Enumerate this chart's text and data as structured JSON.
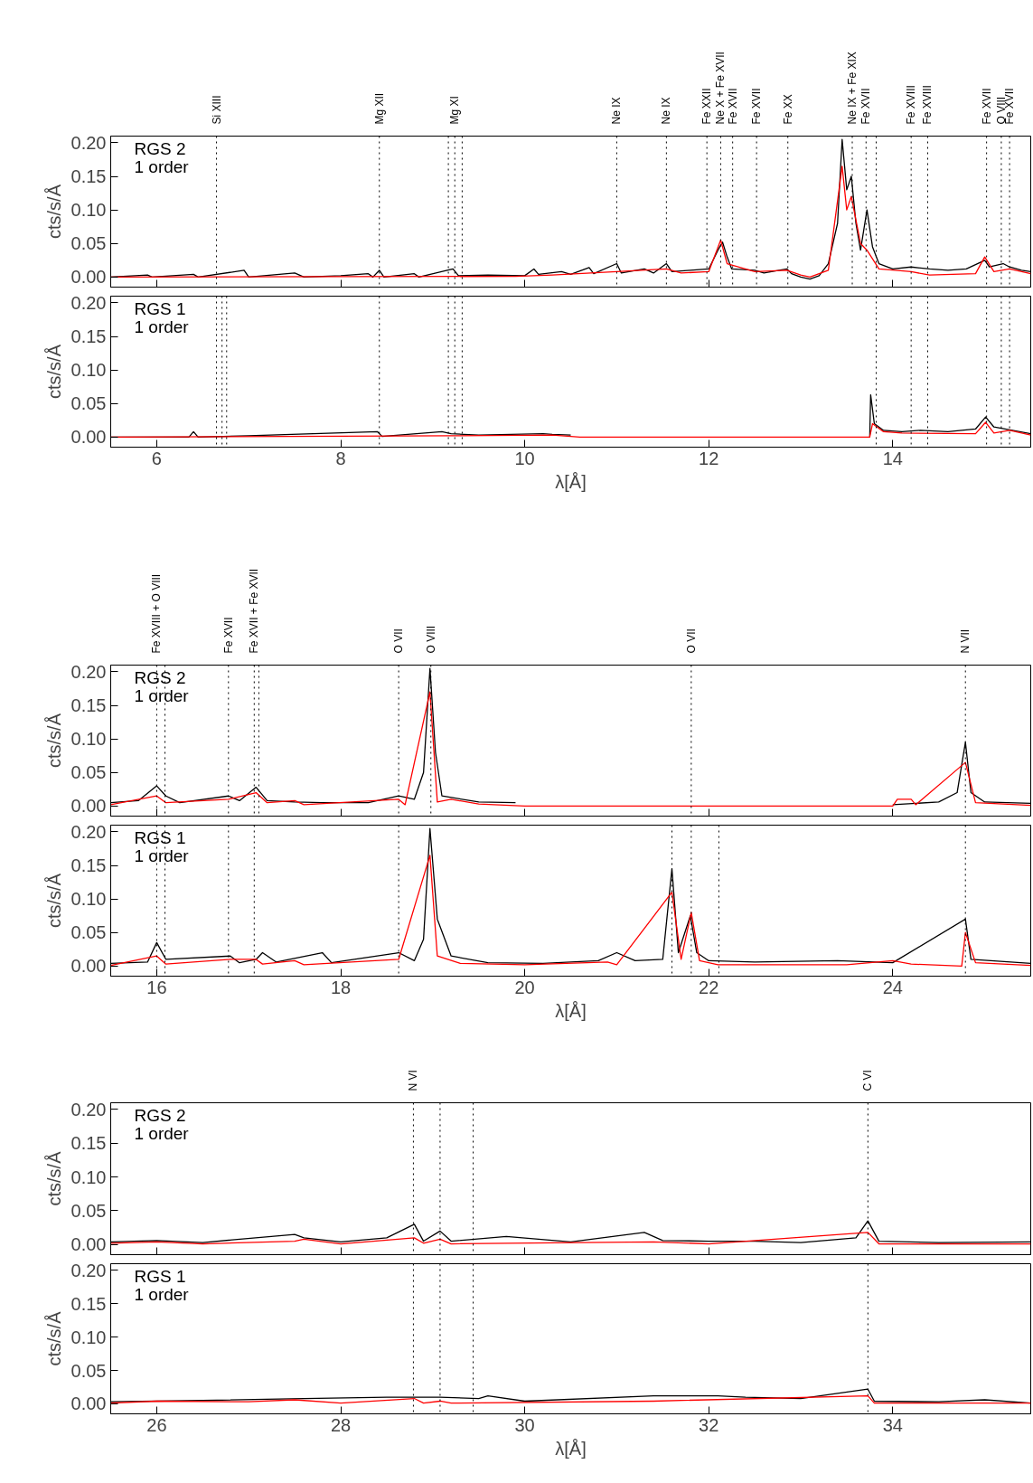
{
  "chart_data": [
    {
      "type": "line",
      "ylabel": "cts/s/Å",
      "xlim": [
        5.5,
        15.5
      ],
      "xticks": [
        6,
        8,
        10,
        12,
        14
      ],
      "ylim": [
        -0.015,
        0.21
      ],
      "yticks": [
        {
          "value": 0,
          "label": "0.00"
        },
        {
          "value": 0.05,
          "label": "0.05"
        },
        {
          "value": 0.1,
          "label": "0.10"
        },
        {
          "value": 0.15,
          "label": "0.15"
        },
        {
          "value": 0.2,
          "label": "0.20"
        }
      ],
      "tick_labels": "y",
      "grid": false,
      "annotations": [
        "RGS 2",
        "1 order"
      ],
      "series": [
        {
          "color": "#000000",
          "x": [
            5.5,
            5.9,
            5.95,
            6.4,
            6.45,
            6.95,
            7.0,
            7.5,
            7.6,
            8.0,
            8.3,
            8.35,
            8.42,
            8.47,
            8.8,
            8.85,
            9.22,
            9.28,
            9.6,
            10.0,
            10.1,
            10.15,
            10.4,
            10.5,
            10.7,
            10.75,
            11.0,
            11.05,
            11.3,
            11.4,
            11.54,
            11.6,
            11.8,
            12.0,
            12.1,
            12.15,
            12.2,
            12.25,
            12.5,
            12.6,
            12.85,
            12.9,
            13.0,
            13.1,
            13.2,
            13.3,
            13.4,
            13.45,
            13.5,
            13.55,
            13.6,
            13.65,
            13.72,
            13.78,
            13.85,
            14.0,
            14.2,
            14.4,
            14.6,
            14.8,
            15.0,
            15.05,
            15.2,
            15.27,
            15.4,
            15.5
          ],
          "values": [
            0,
            0.003,
            0,
            0.004,
            0,
            0.01,
            0,
            0.006,
            0,
            0.002,
            0.005,
            0,
            0.01,
            0,
            0.005,
            0,
            0.012,
            0.002,
            0.003,
            0.002,
            0.012,
            0.004,
            0.008,
            0.004,
            0.014,
            0.005,
            0.02,
            0.006,
            0.012,
            0.006,
            0.02,
            0.008,
            0.01,
            0.012,
            0.04,
            0.052,
            0.03,
            0.012,
            0.01,
            0.006,
            0.012,
            0.005,
            0,
            -0.003,
            0.002,
            0.02,
            0.08,
            0.205,
            0.13,
            0.15,
            0.08,
            0.04,
            0.1,
            0.045,
            0.02,
            0.012,
            0.015,
            0.012,
            0.01,
            0.012,
            0.025,
            0.015,
            0.02,
            0.015,
            0.01,
            0.008
          ]
        },
        {
          "color": "#ff0000",
          "x": [
            5.5,
            9.9,
            10.3,
            11.0,
            11.54,
            11.7,
            12.0,
            12.13,
            12.2,
            12.5,
            12.85,
            13.0,
            13.1,
            13.3,
            13.45,
            13.5,
            13.55,
            13.65,
            13.72,
            13.85,
            14.2,
            14.4,
            14.9,
            15.0,
            15.1,
            15.27,
            15.5
          ],
          "values": [
            0,
            0.001,
            0.003,
            0.008,
            0.012,
            0.006,
            0.008,
            0.055,
            0.02,
            0.008,
            0.01,
            0.003,
            0,
            0.01,
            0.165,
            0.1,
            0.12,
            0.05,
            0.04,
            0.012,
            0.008,
            0.003,
            0.005,
            0.03,
            0.008,
            0.012,
            0.005
          ]
        }
      ],
      "ref_lines": [
        {
          "axis": "x",
          "value": 6.65,
          "label": "Si XIII",
          "line_style": "dotted"
        },
        {
          "axis": "x",
          "value": 8.42,
          "label": "Mg XII",
          "line_style": "dotted"
        },
        {
          "axis": "x",
          "value": 9.17,
          "label": null,
          "line_style": "dotted"
        },
        {
          "axis": "x",
          "value": 9.24,
          "label": "Mg XI",
          "line_style": "dotted"
        },
        {
          "axis": "x",
          "value": 9.32,
          "label": null,
          "line_style": "dotted"
        },
        {
          "axis": "x",
          "value": 11.0,
          "label": "Ne IX",
          "line_style": "dotted"
        },
        {
          "axis": "x",
          "value": 11.54,
          "label": "Ne IX",
          "line_style": "dotted"
        },
        {
          "axis": "x",
          "value": 11.98,
          "label": "Fe XXII",
          "line_style": "dotted"
        },
        {
          "axis": "x",
          "value": 12.13,
          "label": "Ne X + Fe XVII",
          "line_style": "dotted"
        },
        {
          "axis": "x",
          "value": 12.26,
          "label": "Fe XVII",
          "line_style": "dotted"
        },
        {
          "axis": "x",
          "value": 12.52,
          "label": "Fe XVII",
          "line_style": "dotted"
        },
        {
          "axis": "x",
          "value": 12.86,
          "label": "Fe XX",
          "line_style": "dotted"
        },
        {
          "axis": "x",
          "value": 13.56,
          "label": "Ne IX + Fe XIX",
          "line_style": "dotted"
        },
        {
          "axis": "x",
          "value": 13.71,
          "label": "Fe XVII",
          "line_style": "dotted"
        },
        {
          "axis": "x",
          "value": 13.82,
          "label": null,
          "line_style": "dotted"
        },
        {
          "axis": "x",
          "value": 14.2,
          "label": "Fe XVIII",
          "line_style": "dotted"
        },
        {
          "axis": "x",
          "value": 14.38,
          "label": "Fe XVIII",
          "line_style": "dotted"
        },
        {
          "axis": "x",
          "value": 15.02,
          "label": "Fe XVII",
          "line_style": "dotted"
        },
        {
          "axis": "x",
          "value": 15.18,
          "label": "O VIII",
          "line_style": "dotted"
        },
        {
          "axis": "x",
          "value": 15.27,
          "label": "Fe XVII",
          "line_style": "dotted"
        }
      ]
    },
    {
      "type": "line",
      "ylabel": "cts/s/Å",
      "xlabel": "λ[Å]",
      "xlim": [
        5.5,
        15.5
      ],
      "xticks": [
        6,
        8,
        10,
        12,
        14
      ],
      "ylim": [
        -0.015,
        0.21
      ],
      "yticks": [
        {
          "value": 0,
          "label": "0.00"
        },
        {
          "value": 0.05,
          "label": "0.05"
        },
        {
          "value": 0.1,
          "label": "0.10"
        },
        {
          "value": 0.15,
          "label": "0.15"
        },
        {
          "value": 0.2,
          "label": "0.20"
        }
      ],
      "grid": false,
      "annotations": [
        "RGS 1",
        "1 order"
      ],
      "series": [
        {
          "color": "#000000",
          "x": [
            5.5,
            6.35,
            6.4,
            6.45,
            7.0,
            8.4,
            8.45,
            9.1,
            9.2,
            9.5,
            10.2,
            10.3,
            10.5,
            10.55,
            13.75,
            13.76,
            13.8,
            13.9,
            14.1,
            14.3,
            14.6,
            14.9,
            15.01,
            15.1,
            15.3,
            15.5
          ],
          "values": [
            0,
            0,
            0.008,
            0,
            0.002,
            0.008,
            0.001,
            0.008,
            0.005,
            0.003,
            0.005,
            0.004,
            0.003,
            null,
            0,
            0.063,
            0.02,
            0.01,
            0.008,
            0.01,
            0.008,
            0.012,
            0.03,
            0.015,
            0.01,
            0.005
          ]
        },
        {
          "color": "#ff0000",
          "x": [
            5.5,
            9.2,
            10.3,
            10.6,
            13.75,
            13.78,
            13.9,
            14.1,
            14.9,
            15.01,
            15.1,
            15.27,
            15.5
          ],
          "values": [
            0,
            0.002,
            0.003,
            0,
            0,
            0.02,
            0.008,
            0.006,
            0.005,
            0.022,
            0.006,
            0.01,
            0.003
          ]
        }
      ],
      "ref_lines": [
        {
          "axis": "x",
          "value": 6.65,
          "line_style": "dotted"
        },
        {
          "axis": "x",
          "value": 6.71,
          "line_style": "dotted"
        },
        {
          "axis": "x",
          "value": 6.76,
          "line_style": "dotted"
        },
        {
          "axis": "x",
          "value": 8.42,
          "line_style": "dotted"
        },
        {
          "axis": "x",
          "value": 9.17,
          "line_style": "dotted"
        },
        {
          "axis": "x",
          "value": 9.24,
          "line_style": "dotted"
        },
        {
          "axis": "x",
          "value": 9.32,
          "line_style": "dotted"
        },
        {
          "axis": "x",
          "value": 13.82,
          "line_style": "dotted"
        },
        {
          "axis": "x",
          "value": 14.2,
          "line_style": "dotted"
        },
        {
          "axis": "x",
          "value": 14.38,
          "line_style": "dotted"
        },
        {
          "axis": "x",
          "value": 15.02,
          "line_style": "dotted"
        },
        {
          "axis": "x",
          "value": 15.18,
          "line_style": "dotted"
        },
        {
          "axis": "x",
          "value": 15.27,
          "line_style": "dotted"
        }
      ]
    },
    {
      "type": "line",
      "ylabel": "cts/s/Å",
      "xlim": [
        15.5,
        25.5
      ],
      "xticks": [
        16,
        18,
        20,
        22,
        24
      ],
      "ylim": [
        -0.015,
        0.21
      ],
      "yticks": [
        {
          "value": 0,
          "label": "0.00"
        },
        {
          "value": 0.05,
          "label": "0.05"
        },
        {
          "value": 0.1,
          "label": "0.10"
        },
        {
          "value": 0.15,
          "label": "0.15"
        },
        {
          "value": 0.2,
          "label": "0.20"
        }
      ],
      "tick_labels": "y",
      "grid": false,
      "annotations": [
        "RGS 2",
        "1 order"
      ],
      "series": [
        {
          "color": "#000000",
          "x": [
            15.5,
            15.8,
            16.0,
            16.1,
            16.25,
            16.78,
            16.9,
            17.08,
            17.2,
            17.5,
            17.8,
            18.3,
            18.63,
            18.8,
            18.9,
            18.97,
            19.03,
            19.1,
            19.5,
            19.9,
            20.0,
            24.0,
            24.5,
            24.7,
            24.79,
            24.85,
            25.0,
            25.5
          ],
          "values": [
            0.005,
            0.008,
            0.03,
            0.015,
            0.005,
            0.015,
            0.008,
            0.028,
            0.008,
            0.006,
            0.005,
            0.005,
            0.015,
            0.01,
            0.05,
            0.205,
            0.08,
            0.015,
            0.006,
            0.005,
            null,
            0.002,
            0.006,
            0.02,
            0.095,
            0.02,
            0.006,
            0.004
          ]
        },
        {
          "color": "#ff0000",
          "x": [
            15.5,
            16.0,
            16.1,
            16.78,
            17.08,
            17.2,
            17.5,
            17.6,
            18.63,
            18.7,
            18.97,
            19.05,
            19.2,
            19.5,
            20.0,
            24.0,
            24.05,
            24.2,
            24.25,
            24.79,
            24.9,
            25.5
          ],
          "values": [
            0.002,
            0.015,
            0.005,
            0.01,
            0.02,
            0.005,
            0.008,
            0.002,
            0.01,
            0.002,
            0.17,
            0.006,
            0.01,
            0.003,
            0,
            0,
            0.01,
            0.01,
            0.002,
            0.065,
            0.005,
            0.001
          ]
        }
      ],
      "ref_lines": [
        {
          "axis": "x",
          "value": 16.0,
          "label": "Fe XVIII + O VIII",
          "line_style": "dotted"
        },
        {
          "axis": "x",
          "value": 16.09,
          "label": null,
          "line_style": "dotted"
        },
        {
          "axis": "x",
          "value": 16.78,
          "label": "Fe XVII",
          "line_style": "dotted"
        },
        {
          "axis": "x",
          "value": 17.06,
          "label": "Fe XVII + Fe XVII",
          "line_style": "dotted"
        },
        {
          "axis": "x",
          "value": 17.11,
          "label": null,
          "line_style": "dotted"
        },
        {
          "axis": "x",
          "value": 18.63,
          "label": "O VII",
          "line_style": "dotted"
        },
        {
          "axis": "x",
          "value": 18.98,
          "label": "O VIII",
          "line_style": "dotted"
        },
        {
          "axis": "x",
          "value": 21.81,
          "label": "O VII",
          "line_style": "dotted"
        },
        {
          "axis": "x",
          "value": 24.79,
          "label": "N VII",
          "line_style": "dotted"
        }
      ]
    },
    {
      "type": "line",
      "ylabel": "cts/s/Å",
      "xlabel": "λ[Å]",
      "xlim": [
        15.5,
        25.5
      ],
      "xticks": [
        16,
        18,
        20,
        22,
        24
      ],
      "ylim": [
        -0.015,
        0.21
      ],
      "yticks": [
        {
          "value": 0,
          "label": "0.00"
        },
        {
          "value": 0.05,
          "label": "0.05"
        },
        {
          "value": 0.1,
          "label": "0.10"
        },
        {
          "value": 0.15,
          "label": "0.15"
        },
        {
          "value": 0.2,
          "label": "0.20"
        }
      ],
      "grid": false,
      "annotations": [
        "RGS 1",
        "1 order"
      ],
      "series": [
        {
          "color": "#000000",
          "x": [
            15.5,
            15.9,
            16.0,
            16.1,
            16.8,
            16.9,
            17.08,
            17.15,
            17.3,
            17.8,
            17.9,
            18.63,
            18.8,
            18.9,
            18.97,
            19.05,
            19.2,
            19.6,
            20.2,
            20.8,
            21.0,
            21.2,
            21.5,
            21.6,
            21.67,
            21.8,
            21.87,
            22.0,
            22.5,
            23.4,
            24.0,
            24.79,
            24.85,
            25.5
          ],
          "values": [
            0.004,
            0.006,
            0.035,
            0.01,
            0.015,
            0.005,
            0.01,
            0.02,
            0.006,
            0.02,
            0.005,
            0.02,
            0.008,
            0.04,
            0.205,
            0.07,
            0.015,
            0.005,
            0.004,
            0.008,
            0.02,
            0.008,
            0.01,
            0.145,
            0.02,
            0.075,
            0.02,
            0.008,
            0.006,
            0.008,
            0.005,
            0.07,
            0.01,
            0.004
          ]
        },
        {
          "color": "#ff0000",
          "x": [
            15.5,
            16.0,
            16.1,
            16.8,
            17.08,
            17.15,
            17.5,
            17.6,
            18.63,
            18.97,
            19.05,
            19.3,
            20.0,
            20.9,
            21.0,
            21.6,
            21.7,
            21.81,
            21.9,
            22.1,
            23.5,
            24.0,
            24.2,
            24.75,
            24.79,
            24.9,
            25.5
          ],
          "values": [
            0.001,
            0.015,
            0.003,
            0.01,
            0.01,
            0.003,
            0.008,
            0.002,
            0.01,
            0.165,
            0.015,
            0.004,
            0.002,
            0.006,
            0.002,
            0.11,
            0.01,
            0.08,
            0.008,
            0.002,
            0.002,
            0.008,
            0.003,
            0,
            0.05,
            0.005,
            0.001
          ]
        }
      ],
      "ref_lines": [
        {
          "axis": "x",
          "value": 16.0,
          "line_style": "dotted"
        },
        {
          "axis": "x",
          "value": 16.09,
          "line_style": "dotted"
        },
        {
          "axis": "x",
          "value": 16.78,
          "line_style": "dotted"
        },
        {
          "axis": "x",
          "value": 17.06,
          "line_style": "dotted"
        },
        {
          "axis": "x",
          "value": 18.63,
          "line_style": "dotted"
        },
        {
          "axis": "x",
          "value": 21.6,
          "line_style": "dotted"
        },
        {
          "axis": "x",
          "value": 21.81,
          "line_style": "dotted"
        },
        {
          "axis": "x",
          "value": 22.11,
          "line_style": "dotted"
        },
        {
          "axis": "x",
          "value": 24.79,
          "line_style": "dotted"
        }
      ]
    },
    {
      "type": "line",
      "ylabel": "cts/s/Å",
      "xlim": [
        25.5,
        35.5
      ],
      "xticks": [
        26,
        28,
        30,
        32,
        34
      ],
      "ylim": [
        -0.015,
        0.21
      ],
      "yticks": [
        {
          "value": 0,
          "label": "0.00"
        },
        {
          "value": 0.05,
          "label": "0.05"
        },
        {
          "value": 0.1,
          "label": "0.10"
        },
        {
          "value": 0.15,
          "label": "0.15"
        },
        {
          "value": 0.2,
          "label": "0.20"
        }
      ],
      "tick_labels": "y",
      "grid": false,
      "annotations": [
        "RGS 2",
        "1 order"
      ],
      "series": [
        {
          "color": "#000000",
          "x": [
            25.5,
            26.0,
            26.5,
            27.5,
            27.6,
            28.0,
            28.5,
            28.8,
            28.9,
            29.08,
            29.2,
            29.8,
            30.5,
            31.3,
            31.5,
            32.0,
            32.5,
            33.0,
            33.6,
            33.73,
            33.85,
            34.5,
            35.5
          ],
          "values": [
            0.004,
            0.006,
            0.003,
            0.015,
            0.01,
            0.004,
            0.01,
            0.03,
            0.005,
            0.02,
            0.005,
            0.012,
            0.004,
            0.018,
            0.006,
            0.005,
            0.005,
            0.003,
            0.01,
            0.035,
            0.005,
            0.003,
            0.004
          ]
        },
        {
          "color": "#ff0000",
          "x": [
            25.5,
            26.0,
            26.5,
            27.5,
            27.6,
            28.0,
            28.8,
            28.9,
            29.08,
            29.2,
            31.4,
            32.0,
            33.73,
            33.85,
            35.5
          ],
          "values": [
            0.002,
            0.004,
            0.001,
            0.005,
            0.008,
            0.001,
            0.01,
            0.002,
            0.008,
            0.001,
            0.004,
            0.001,
            0.018,
            0.001,
            0.001
          ]
        }
      ],
      "ref_lines": [
        {
          "axis": "x",
          "value": 28.79,
          "label": "N VI",
          "line_style": "dotted"
        },
        {
          "axis": "x",
          "value": 29.08,
          "label": null,
          "line_style": "dotted"
        },
        {
          "axis": "x",
          "value": 29.44,
          "label": null,
          "line_style": "dotted"
        },
        {
          "axis": "x",
          "value": 33.73,
          "label": "C VI",
          "line_style": "dotted"
        }
      ]
    },
    {
      "type": "line",
      "ylabel": "cts/s/Å",
      "xlabel": "λ[Å]",
      "xlim": [
        25.5,
        35.5
      ],
      "xticks": [
        26,
        28,
        30,
        32,
        34
      ],
      "ylim": [
        -0.015,
        0.21
      ],
      "yticks": [
        {
          "value": 0,
          "label": "0.00"
        },
        {
          "value": 0.05,
          "label": "0.05"
        },
        {
          "value": 0.1,
          "label": "0.10"
        },
        {
          "value": 0.15,
          "label": "0.15"
        },
        {
          "value": 0.2,
          "label": "0.20"
        }
      ],
      "grid": false,
      "annotations": [
        "RGS 1",
        "1 order"
      ],
      "series": [
        {
          "color": "#000000",
          "x": [
            25.5,
            26.5,
            27.6,
            28.5,
            28.8,
            29.08,
            29.5,
            29.6,
            30.0,
            31.4,
            32.1,
            32.4,
            33.0,
            33.73,
            33.8,
            34.5,
            35.0,
            35.5
          ],
          "values": [
            0.003,
            0.005,
            0.008,
            0.01,
            0.01,
            0.01,
            0.008,
            0.012,
            0.004,
            0.012,
            0.012,
            0.01,
            0.008,
            0.022,
            0.004,
            0.003,
            0.006,
            0.001
          ]
        },
        {
          "color": "#ff0000",
          "x": [
            25.5,
            26.0,
            27.0,
            27.5,
            28.0,
            28.8,
            28.9,
            29.08,
            29.2,
            31.4,
            33.73,
            33.8,
            35.5
          ],
          "values": [
            0.001,
            0.004,
            0.003,
            0.006,
            0.001,
            0.008,
            0.001,
            0.004,
            0.001,
            0.004,
            0.012,
            0.001,
            0.001
          ]
        }
      ],
      "ref_lines": [
        {
          "axis": "x",
          "value": 28.79,
          "line_style": "dotted"
        },
        {
          "axis": "x",
          "value": 29.08,
          "line_style": "dotted"
        },
        {
          "axis": "x",
          "value": 29.44,
          "line_style": "dotted"
        },
        {
          "axis": "x",
          "value": 33.73,
          "line_style": "dotted"
        }
      ]
    }
  ]
}
